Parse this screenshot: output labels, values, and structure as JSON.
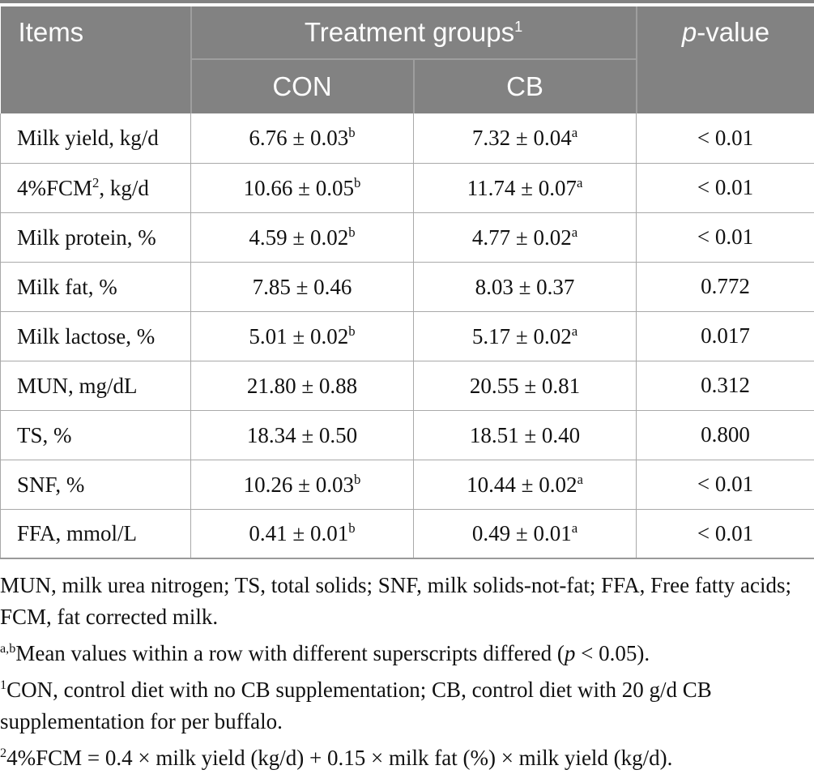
{
  "colors": {
    "header_bg": "#828282",
    "header_divider": "#9e9e9e",
    "header_text": "#fdfdfd",
    "body_border": "#a9a9a9",
    "body_text": "#111111"
  },
  "table": {
    "header": {
      "items": "Items",
      "treatment_groups": {
        "text": "Treatment groups",
        "sup": "1"
      },
      "con": "CON",
      "cb": "CB",
      "p_value": {
        "italic": "p",
        "rest": "-value"
      }
    },
    "rows": [
      {
        "item": {
          "pre": "Milk yield, kg/d",
          "sup": "",
          "post": ""
        },
        "con": {
          "text": "6.76 ± 0.03",
          "sup": "b"
        },
        "cb": {
          "text": "7.32 ± 0.04",
          "sup": "a"
        },
        "p": "< 0.01"
      },
      {
        "item": {
          "pre": "4%FCM",
          "sup": "2",
          "post": ", kg/d"
        },
        "con": {
          "text": "10.66 ± 0.05",
          "sup": "b"
        },
        "cb": {
          "text": "11.74 ± 0.07",
          "sup": "a"
        },
        "p": "< 0.01"
      },
      {
        "item": {
          "pre": "Milk protein, %",
          "sup": "",
          "post": ""
        },
        "con": {
          "text": "4.59 ± 0.02",
          "sup": "b"
        },
        "cb": {
          "text": "4.77 ± 0.02",
          "sup": "a"
        },
        "p": "< 0.01"
      },
      {
        "item": {
          "pre": "Milk fat, %",
          "sup": "",
          "post": ""
        },
        "con": {
          "text": "7.85 ± 0.46",
          "sup": ""
        },
        "cb": {
          "text": "8.03 ± 0.37",
          "sup": ""
        },
        "p": "0.772"
      },
      {
        "item": {
          "pre": "Milk lactose, %",
          "sup": "",
          "post": ""
        },
        "con": {
          "text": "5.01 ± 0.02",
          "sup": "b"
        },
        "cb": {
          "text": "5.17 ± 0.02",
          "sup": "a"
        },
        "p": "0.017"
      },
      {
        "item": {
          "pre": "MUN, mg/dL",
          "sup": "",
          "post": ""
        },
        "con": {
          "text": "21.80 ± 0.88",
          "sup": ""
        },
        "cb": {
          "text": "20.55 ± 0.81",
          "sup": ""
        },
        "p": "0.312"
      },
      {
        "item": {
          "pre": "TS, %",
          "sup": "",
          "post": ""
        },
        "con": {
          "text": "18.34 ± 0.50",
          "sup": ""
        },
        "cb": {
          "text": "18.51 ± 0.40",
          "sup": ""
        },
        "p": "0.800"
      },
      {
        "item": {
          "pre": "SNF, %",
          "sup": "",
          "post": ""
        },
        "con": {
          "text": "10.26 ± 0.03",
          "sup": "b"
        },
        "cb": {
          "text": "10.44 ± 0.02",
          "sup": "a"
        },
        "p": "< 0.01"
      },
      {
        "item": {
          "pre": "FFA, mmol/L",
          "sup": "",
          "post": ""
        },
        "con": {
          "text": "0.41 ± 0.01",
          "sup": "b"
        },
        "cb": {
          "text": "0.49 ± 0.01",
          "sup": "a"
        },
        "p": "< 0.01"
      }
    ]
  },
  "footnotes": [
    {
      "sup": "",
      "pre": "MUN, milk urea nitrogen; TS, total solids; SNF, milk solids-not-fat; FFA, Free fatty acids; FCM, fat corrected milk.",
      "italic": "",
      "post": ""
    },
    {
      "sup": "a,b",
      "pre": "Mean values within a row with different superscripts differed (",
      "italic": "p",
      "post": " < 0.05)."
    },
    {
      "sup": "1",
      "pre": "CON, control diet with no CB supplementation; CB, control diet with 20 g/d CB supplementation for per buffalo.",
      "italic": "",
      "post": ""
    },
    {
      "sup": "2",
      "pre": "4%FCM = 0.4 × milk yield (kg/d) + 0.15 × milk fat (%) × milk yield (kg/d).",
      "italic": "",
      "post": ""
    }
  ]
}
